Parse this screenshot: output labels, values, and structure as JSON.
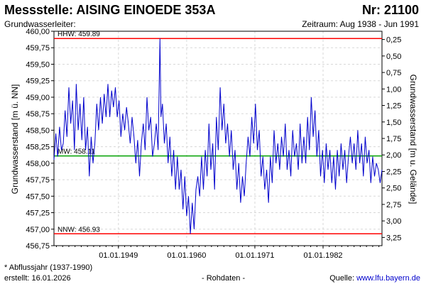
{
  "header": {
    "title": "Messstelle: AISING EINOEDE 353A",
    "number": "Nr: 21100",
    "subtitle_left": "Grundwasserleiter:",
    "subtitle_right": "Zeitraum: Aug 1938 - Jun 1991"
  },
  "footer": {
    "note": "* Abflussjahr (1937-1990)",
    "created": "erstellt:  16.01.2026",
    "raw": "- Rohdaten -",
    "source_label": "Quelle: ",
    "source_link": "www.lfu.bayern.de"
  },
  "chart_data": {
    "type": "line",
    "ylabel_left": "Grundwasserstand [m ü. NN]",
    "ylabel_right": "Grundwasserstand [m u. Gelände]",
    "ylim": [
      456.75,
      460.0
    ],
    "xlim": [
      1938.6,
      1991.5
    ],
    "grid": true,
    "left_ticks": [
      "460,00",
      "459,75",
      "459,50",
      "459,25",
      "459,00",
      "458,75",
      "458,50",
      "458,25",
      "458,00",
      "457,75",
      "457,50",
      "457,25",
      "457,00",
      "456,75"
    ],
    "right_ticks": [
      "0,25",
      "0,50",
      "0,75",
      "1,00",
      "1,25",
      "1,50",
      "1,75",
      "2,00",
      "2,25",
      "2,50",
      "2,75",
      "3,00",
      "3,25"
    ],
    "x_ticks": [
      {
        "value": 1949.0,
        "label": "01.01.1949"
      },
      {
        "value": 1960.0,
        "label": "01.01.1960"
      },
      {
        "value": 1971.0,
        "label": "01.01.1971"
      },
      {
        "value": 1982.0,
        "label": "01.01.1982"
      }
    ],
    "reference_lines": [
      {
        "label": "HHW: 459.89",
        "value": 459.89,
        "color": "#ff0000"
      },
      {
        "label": "MW: 458.11",
        "value": 458.11,
        "color": "#00a000"
      },
      {
        "label": "NNW: 456.93",
        "value": 456.93,
        "color": "#ff0000"
      }
    ],
    "series": [
      {
        "color": "#0000cc",
        "points": [
          [
            1938.6,
            458.05
          ],
          [
            1938.9,
            458.45
          ],
          [
            1939.2,
            458.1
          ],
          [
            1939.5,
            458.55
          ],
          [
            1939.8,
            458.2
          ],
          [
            1940.1,
            458.3
          ],
          [
            1940.4,
            458.8
          ],
          [
            1940.7,
            458.4
          ],
          [
            1941.0,
            459.15
          ],
          [
            1941.3,
            458.6
          ],
          [
            1941.6,
            458.95
          ],
          [
            1941.9,
            458.2
          ],
          [
            1942.2,
            459.2
          ],
          [
            1942.5,
            458.5
          ],
          [
            1942.8,
            458.9
          ],
          [
            1943.1,
            458.35
          ],
          [
            1943.4,
            459.0
          ],
          [
            1943.7,
            458.2
          ],
          [
            1944.0,
            458.55
          ],
          [
            1944.3,
            457.8
          ],
          [
            1944.6,
            458.4
          ],
          [
            1944.9,
            458.0
          ],
          [
            1945.2,
            458.3
          ],
          [
            1945.5,
            458.9
          ],
          [
            1945.8,
            458.5
          ],
          [
            1946.1,
            459.0
          ],
          [
            1946.4,
            458.6
          ],
          [
            1946.7,
            459.05
          ],
          [
            1947.0,
            458.7
          ],
          [
            1947.3,
            459.2
          ],
          [
            1947.6,
            458.7
          ],
          [
            1947.9,
            459.1
          ],
          [
            1948.2,
            458.85
          ],
          [
            1948.5,
            459.15
          ],
          [
            1948.8,
            458.7
          ],
          [
            1949.1,
            458.95
          ],
          [
            1949.4,
            458.4
          ],
          [
            1949.7,
            458.75
          ],
          [
            1950.0,
            458.5
          ],
          [
            1950.3,
            458.85
          ],
          [
            1950.6,
            458.6
          ],
          [
            1950.9,
            458.3
          ],
          [
            1951.2,
            458.7
          ],
          [
            1951.5,
            458.4
          ],
          [
            1951.8,
            458.0
          ],
          [
            1952.1,
            458.35
          ],
          [
            1952.4,
            457.8
          ],
          [
            1952.7,
            458.3
          ],
          [
            1953.0,
            458.6
          ],
          [
            1953.3,
            458.2
          ],
          [
            1953.6,
            459.0
          ],
          [
            1953.9,
            458.5
          ],
          [
            1954.2,
            458.7
          ],
          [
            1954.5,
            458.1
          ],
          [
            1954.8,
            458.3
          ],
          [
            1955.1,
            458.6
          ],
          [
            1955.4,
            458.2
          ],
          [
            1955.7,
            459.89
          ],
          [
            1955.85,
            458.7
          ],
          [
            1956.1,
            458.9
          ],
          [
            1956.4,
            458.3
          ],
          [
            1956.7,
            458.6
          ],
          [
            1957.0,
            458.0
          ],
          [
            1957.3,
            458.4
          ],
          [
            1957.6,
            457.8
          ],
          [
            1957.9,
            458.2
          ],
          [
            1958.2,
            457.6
          ],
          [
            1958.5,
            458.1
          ],
          [
            1958.8,
            457.6
          ],
          [
            1959.1,
            457.9
          ],
          [
            1959.4,
            457.3
          ],
          [
            1959.7,
            457.8
          ],
          [
            1960.0,
            457.2
          ],
          [
            1960.3,
            457.5
          ],
          [
            1960.6,
            456.93
          ],
          [
            1960.9,
            457.4
          ],
          [
            1961.2,
            457.0
          ],
          [
            1961.5,
            457.6
          ],
          [
            1961.8,
            457.8
          ],
          [
            1962.1,
            457.5
          ],
          [
            1962.4,
            458.1
          ],
          [
            1962.7,
            457.6
          ],
          [
            1963.0,
            458.2
          ],
          [
            1963.3,
            457.8
          ],
          [
            1963.6,
            458.6
          ],
          [
            1963.9,
            457.9
          ],
          [
            1964.2,
            458.3
          ],
          [
            1964.5,
            457.6
          ],
          [
            1964.8,
            458.7
          ],
          [
            1965.1,
            458.2
          ],
          [
            1965.4,
            459.15
          ],
          [
            1965.7,
            458.5
          ],
          [
            1966.0,
            458.9
          ],
          [
            1966.3,
            458.3
          ],
          [
            1966.6,
            458.6
          ],
          [
            1966.9,
            458.1
          ],
          [
            1967.2,
            458.5
          ],
          [
            1967.5,
            457.9
          ],
          [
            1967.8,
            458.2
          ],
          [
            1968.1,
            457.6
          ],
          [
            1968.4,
            458.0
          ],
          [
            1968.7,
            457.4
          ],
          [
            1969.0,
            457.8
          ],
          [
            1969.3,
            457.5
          ],
          [
            1969.6,
            458.0
          ],
          [
            1969.9,
            458.4
          ],
          [
            1970.2,
            458.1
          ],
          [
            1970.5,
            458.7
          ],
          [
            1970.8,
            458.3
          ],
          [
            1971.1,
            458.9
          ],
          [
            1971.4,
            458.2
          ],
          [
            1971.7,
            458.5
          ],
          [
            1972.0,
            457.8
          ],
          [
            1972.3,
            458.1
          ],
          [
            1972.6,
            457.6
          ],
          [
            1972.9,
            457.9
          ],
          [
            1973.2,
            457.4
          ],
          [
            1973.5,
            458.1
          ],
          [
            1973.8,
            457.7
          ],
          [
            1974.1,
            458.5
          ],
          [
            1974.4,
            458.0
          ],
          [
            1974.7,
            458.3
          ],
          [
            1975.0,
            457.9
          ],
          [
            1975.3,
            458.4
          ],
          [
            1975.6,
            458.1
          ],
          [
            1975.9,
            458.6
          ],
          [
            1976.2,
            457.9
          ],
          [
            1976.5,
            458.2
          ],
          [
            1976.8,
            457.8
          ],
          [
            1977.1,
            458.5
          ],
          [
            1977.4,
            458.1
          ],
          [
            1977.7,
            458.3
          ],
          [
            1978.0,
            457.9
          ],
          [
            1978.3,
            458.6
          ],
          [
            1978.6,
            458.0
          ],
          [
            1978.9,
            458.4
          ],
          [
            1979.2,
            458.0
          ],
          [
            1979.5,
            458.7
          ],
          [
            1979.8,
            458.2
          ],
          [
            1980.1,
            459.0
          ],
          [
            1980.4,
            458.4
          ],
          [
            1980.7,
            458.8
          ],
          [
            1981.0,
            458.1
          ],
          [
            1981.3,
            458.5
          ],
          [
            1981.6,
            457.8
          ],
          [
            1981.9,
            458.2
          ],
          [
            1982.2,
            457.7
          ],
          [
            1982.5,
            458.3
          ],
          [
            1982.8,
            457.9
          ],
          [
            1983.1,
            458.2
          ],
          [
            1983.4,
            457.7
          ],
          [
            1983.7,
            458.1
          ],
          [
            1984.0,
            457.6
          ],
          [
            1984.3,
            458.2
          ],
          [
            1984.6,
            457.8
          ],
          [
            1984.9,
            458.3
          ],
          [
            1985.2,
            457.9
          ],
          [
            1985.5,
            458.2
          ],
          [
            1985.8,
            457.7
          ],
          [
            1986.1,
            458.1
          ],
          [
            1986.4,
            458.4
          ],
          [
            1986.7,
            458.0
          ],
          [
            1987.0,
            458.3
          ],
          [
            1987.3,
            457.9
          ],
          [
            1987.6,
            458.5
          ],
          [
            1987.9,
            458.0
          ],
          [
            1988.2,
            458.3
          ],
          [
            1988.5,
            457.8
          ],
          [
            1988.8,
            458.4
          ],
          [
            1989.1,
            458.0
          ],
          [
            1989.4,
            458.2
          ],
          [
            1989.7,
            457.7
          ],
          [
            1990.0,
            458.1
          ],
          [
            1990.3,
            457.8
          ],
          [
            1990.6,
            458.0
          ],
          [
            1990.9,
            457.9
          ],
          [
            1991.2,
            457.7
          ],
          [
            1991.5,
            457.9
          ]
        ]
      }
    ]
  }
}
